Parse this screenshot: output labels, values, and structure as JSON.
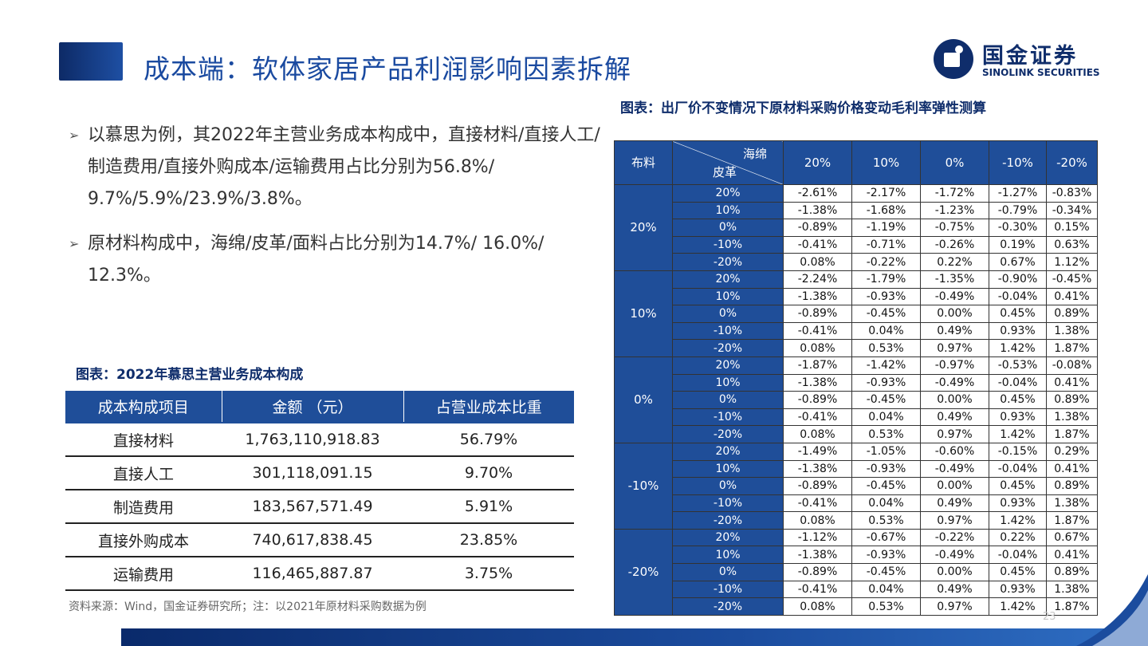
{
  "header": {
    "title": "成本端：软体家居产品利润影响因素拆解"
  },
  "logo": {
    "cn": "国金证券",
    "en": "SINOLINK SECURITIES"
  },
  "bullets": [
    "以慕思为例，其2022年主营业务成本构成中，直接材料/直接人工/制造费用/直接外购成本/运输费用占比分别为56.8%/ 9.7%/5.9%/23.9%/3.8%。",
    "原材料构成中，海绵/皮革/面料占比分别为14.7%/ 16.0%/ 12.3%。"
  ],
  "cost_table": {
    "caption": "图表：2022年慕思主营业务成本构成",
    "headers": [
      "成本构成项目",
      "金额 （元）",
      "占营业成本比重"
    ],
    "rows": [
      [
        "直接材料",
        "1,763,110,918.83",
        "56.79%"
      ],
      [
        "直接人工",
        "301,118,091.15",
        "9.70%"
      ],
      [
        "制造费用",
        "183,567,571.49",
        "5.91%"
      ],
      [
        "直接外购成本",
        "740,617,838.45",
        "23.85%"
      ],
      [
        "运输费用",
        "116,465,887.87",
        "3.75%"
      ]
    ],
    "source": "资料来源：Wind，国金证券研究所；注：以2021年原材料采购数据为例"
  },
  "sensitivity": {
    "caption": "图表：出厂价不变情况下原材料采购价格变动毛利率弹性测算",
    "corner_top": "海绵",
    "corner_bottom": "皮革",
    "corner_left": "布料",
    "col_headers": [
      "20%",
      "10%",
      "0%",
      "-10%",
      "-20%"
    ],
    "groups": [
      {
        "label": "20%",
        "rows": [
          {
            "leather": "20%",
            "values": [
              "-2.61%",
              "-2.17%",
              "-1.72%",
              "-1.27%",
              "-0.83%"
            ]
          },
          {
            "leather": "10%",
            "values": [
              "-1.38%",
              "-1.68%",
              "-1.23%",
              "-0.79%",
              "-0.34%"
            ]
          },
          {
            "leather": "0%",
            "values": [
              "-0.89%",
              "-1.19%",
              "-0.75%",
              "-0.30%",
              "0.15%"
            ]
          },
          {
            "leather": "-10%",
            "values": [
              "-0.41%",
              "-0.71%",
              "-0.26%",
              "0.19%",
              "0.63%"
            ]
          },
          {
            "leather": "-20%",
            "values": [
              "0.08%",
              "-0.22%",
              "0.22%",
              "0.67%",
              "1.12%"
            ]
          }
        ]
      },
      {
        "label": "10%",
        "rows": [
          {
            "leather": "20%",
            "values": [
              "-2.24%",
              "-1.79%",
              "-1.35%",
              "-0.90%",
              "-0.45%"
            ]
          },
          {
            "leather": "10%",
            "values": [
              "-1.38%",
              "-0.93%",
              "-0.49%",
              "-0.04%",
              "0.41%"
            ]
          },
          {
            "leather": "0%",
            "values": [
              "-0.89%",
              "-0.45%",
              "0.00%",
              "0.45%",
              "0.89%"
            ]
          },
          {
            "leather": "-10%",
            "values": [
              "-0.41%",
              "0.04%",
              "0.49%",
              "0.93%",
              "1.38%"
            ]
          },
          {
            "leather": "-20%",
            "values": [
              "0.08%",
              "0.53%",
              "0.97%",
              "1.42%",
              "1.87%"
            ]
          }
        ]
      },
      {
        "label": "0%",
        "rows": [
          {
            "leather": "20%",
            "values": [
              "-1.87%",
              "-1.42%",
              "-0.97%",
              "-0.53%",
              "-0.08%"
            ]
          },
          {
            "leather": "10%",
            "values": [
              "-1.38%",
              "-0.93%",
              "-0.49%",
              "-0.04%",
              "0.41%"
            ]
          },
          {
            "leather": "0%",
            "values": [
              "-0.89%",
              "-0.45%",
              "0.00%",
              "0.45%",
              "0.89%"
            ]
          },
          {
            "leather": "-10%",
            "values": [
              "-0.41%",
              "0.04%",
              "0.49%",
              "0.93%",
              "1.38%"
            ]
          },
          {
            "leather": "-20%",
            "values": [
              "0.08%",
              "0.53%",
              "0.97%",
              "1.42%",
              "1.87%"
            ]
          }
        ]
      },
      {
        "label": "-10%",
        "rows": [
          {
            "leather": "20%",
            "values": [
              "-1.49%",
              "-1.05%",
              "-0.60%",
              "-0.15%",
              "0.29%"
            ]
          },
          {
            "leather": "10%",
            "values": [
              "-1.38%",
              "-0.93%",
              "-0.49%",
              "-0.04%",
              "0.41%"
            ]
          },
          {
            "leather": "0%",
            "values": [
              "-0.89%",
              "-0.45%",
              "0.00%",
              "0.45%",
              "0.89%"
            ]
          },
          {
            "leather": "-10%",
            "values": [
              "-0.41%",
              "0.04%",
              "0.49%",
              "0.93%",
              "1.38%"
            ]
          },
          {
            "leather": "-20%",
            "values": [
              "0.08%",
              "0.53%",
              "0.97%",
              "1.42%",
              "1.87%"
            ]
          }
        ]
      },
      {
        "label": "-20%",
        "rows": [
          {
            "leather": "20%",
            "values": [
              "-1.12%",
              "-0.67%",
              "-0.22%",
              "0.22%",
              "0.67%"
            ]
          },
          {
            "leather": "10%",
            "values": [
              "-1.38%",
              "-0.93%",
              "-0.49%",
              "-0.04%",
              "0.41%"
            ]
          },
          {
            "leather": "0%",
            "values": [
              "-0.89%",
              "-0.45%",
              "0.00%",
              "0.45%",
              "0.89%"
            ]
          },
          {
            "leather": "-10%",
            "values": [
              "-0.41%",
              "0.04%",
              "0.49%",
              "0.93%",
              "1.38%"
            ]
          },
          {
            "leather": "-20%",
            "values": [
              "0.08%",
              "0.53%",
              "0.97%",
              "1.42%",
              "1.87%"
            ]
          }
        ]
      }
    ]
  },
  "footer": {
    "page_number": "23"
  }
}
